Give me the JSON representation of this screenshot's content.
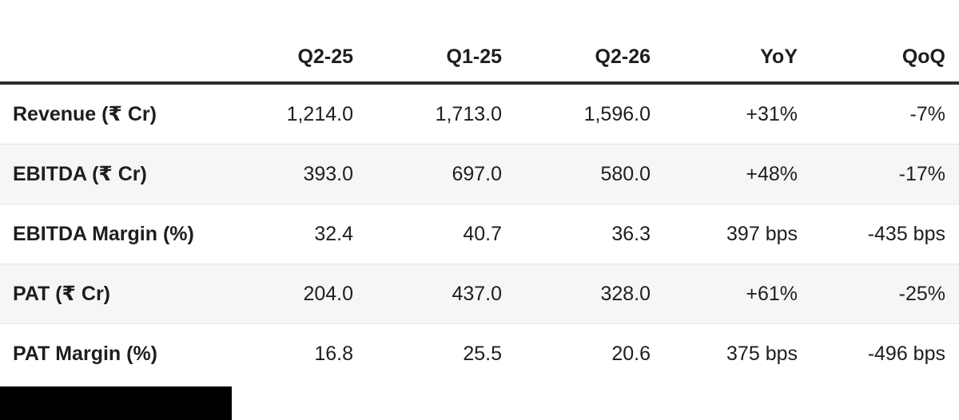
{
  "chart_data": {
    "type": "table",
    "columns": [
      "",
      "Q2-25",
      "Q1-25",
      "Q2-26",
      "YoY",
      "QoQ"
    ],
    "rows": [
      {
        "label": "Revenue (₹ Cr)",
        "values": [
          "1,214.0",
          "1,713.0",
          "1,596.0",
          "+31%",
          "-7%"
        ]
      },
      {
        "label": "EBITDA (₹ Cr)",
        "values": [
          "393.0",
          "697.0",
          "580.0",
          "+48%",
          "-17%"
        ]
      },
      {
        "label": "EBITDA Margin (%)",
        "values": [
          "32.4",
          "40.7",
          "36.3",
          "397 bps",
          "-435 bps"
        ]
      },
      {
        "label": "PAT (₹ Cr)",
        "values": [
          "204.0",
          "437.0",
          "328.0",
          "+61%",
          "-25%"
        ]
      },
      {
        "label": "PAT Margin (%)",
        "values": [
          "16.8",
          "25.5",
          "20.6",
          "375 bps",
          "-496 bps"
        ]
      }
    ],
    "layout": {
      "zebra_striping": true,
      "value_alignment": "right",
      "label_alignment": "left"
    }
  },
  "colors": {
    "text": "#1e1e1e",
    "header_rule": "#2f2f2f",
    "row_separator": "#e4e4e4",
    "zebra_row_bg": "#f6f6f6",
    "redaction_block": "#000000"
  }
}
